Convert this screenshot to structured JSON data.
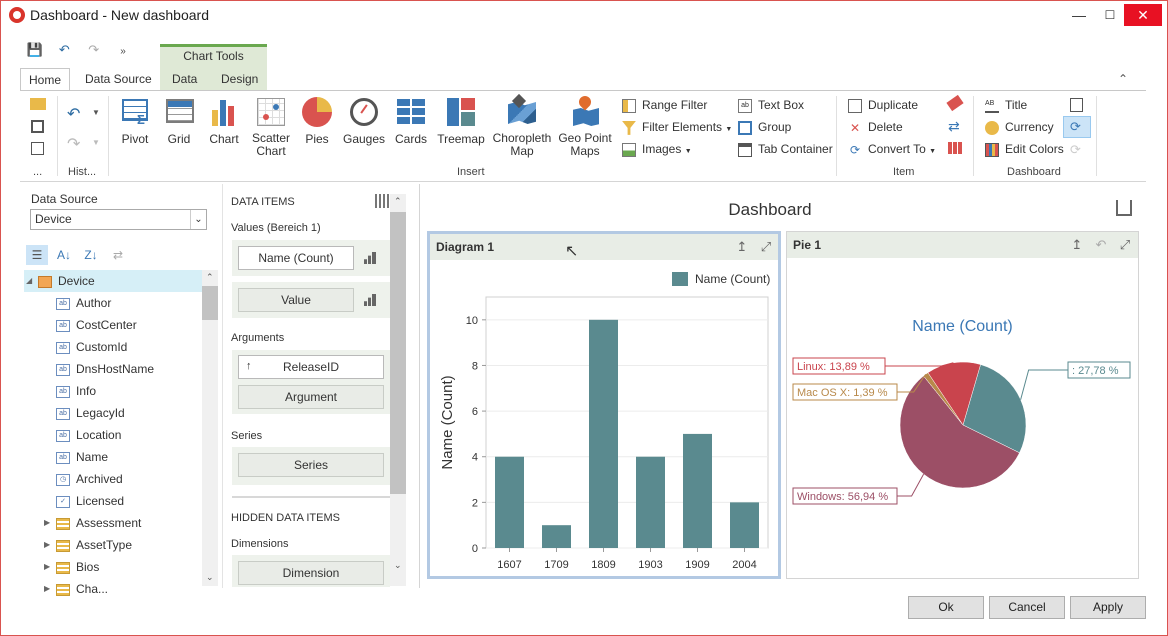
{
  "window": {
    "title": "Dashboard - New dashboard",
    "min": "—",
    "max": "☐",
    "close": "✕"
  },
  "ribbon": {
    "context_header": "Chart Tools",
    "tabs": [
      "Home",
      "Data Source",
      "Data",
      "Design"
    ],
    "history_small": "...",
    "history_label": "Hist...",
    "insert": {
      "label": "Insert",
      "big": [
        "Pivot",
        "Grid",
        "Chart",
        "Scatter Chart",
        "Pies",
        "Gauges",
        "Cards",
        "Treemap",
        "Choropleth Map",
        "Geo Point Maps"
      ],
      "small_col1": [
        "Range Filter",
        "Filter Elements",
        "Images"
      ],
      "small_col2": [
        "Text Box",
        "Group",
        "Tab Container"
      ]
    },
    "item": {
      "label": "Item",
      "small": [
        "Duplicate",
        "Delete",
        "Convert To"
      ]
    },
    "dashboard": {
      "label": "Dashboard",
      "small": [
        "Title",
        "Currency",
        "Edit Colors"
      ]
    }
  },
  "left_panel": {
    "ds_label": "Data Source",
    "ds_value": "Device",
    "tree": [
      {
        "label": "Device",
        "kind": "root"
      },
      {
        "label": "Author",
        "kind": "ab"
      },
      {
        "label": "CostCenter",
        "kind": "ab"
      },
      {
        "label": "CustomId",
        "kind": "ab"
      },
      {
        "label": "DnsHostName",
        "kind": "ab"
      },
      {
        "label": "Info",
        "kind": "ab"
      },
      {
        "label": "LegacyId",
        "kind": "ab"
      },
      {
        "label": "Location",
        "kind": "ab"
      },
      {
        "label": "Name",
        "kind": "ab"
      },
      {
        "label": "Archived",
        "kind": "clock"
      },
      {
        "label": "Licensed",
        "kind": "check"
      },
      {
        "label": "Assessment",
        "kind": "table"
      },
      {
        "label": "AssetType",
        "kind": "table"
      },
      {
        "label": "Bios",
        "kind": "table"
      },
      {
        "label": "Cha...",
        "kind": "table"
      }
    ]
  },
  "data_items": {
    "header": "DATA ITEMS",
    "values_label": "Values (Bereich 1)",
    "value_items": [
      "Name (Count)",
      "Value"
    ],
    "arguments_label": "Arguments",
    "argument_items": [
      "ReleaseID",
      "Argument"
    ],
    "series_label": "Series",
    "series_items": [
      "Series"
    ],
    "hidden_header": "HIDDEN DATA ITEMS",
    "dimensions_label": "Dimensions",
    "dimension_items": [
      "Dimension"
    ]
  },
  "dashboard_title": "Dashboard",
  "diagram": {
    "caption": "Diagram 1",
    "legend": "Name (Count)",
    "color": "#5a8a8f"
  },
  "pie_item": {
    "caption": "Pie 1",
    "title": "Name (Count)"
  },
  "chart_data": [
    {
      "type": "bar",
      "categories": [
        "1607",
        "1709",
        "1809",
        "1903",
        "1909",
        "2004"
      ],
      "series": [
        {
          "name": "Name (Count)",
          "values": [
            4,
            1,
            10,
            4,
            5,
            2
          ]
        }
      ],
      "ylabel": "Name (Count)",
      "ylim": [
        0,
        11
      ],
      "yticks": [
        0,
        2,
        4,
        6,
        8,
        10
      ],
      "legend": "top-right",
      "grid": true
    },
    {
      "type": "pie",
      "title": "Name (Count)",
      "slices": [
        {
          "label": ": 27,78 %",
          "value": 27.78,
          "color": "#5a8a8f"
        },
        {
          "label": "Windows: 56,94 %",
          "value": 56.94,
          "color": "#9c4f66"
        },
        {
          "label": "Mac OS X: 1,39 %",
          "value": 1.39,
          "color": "#b8894a"
        },
        {
          "label": "Linux: 13,89 %",
          "value": 13.89,
          "color": "#c9444d"
        }
      ]
    }
  ],
  "buttons": {
    "ok": "Ok",
    "cancel": "Cancel",
    "apply": "Apply"
  }
}
